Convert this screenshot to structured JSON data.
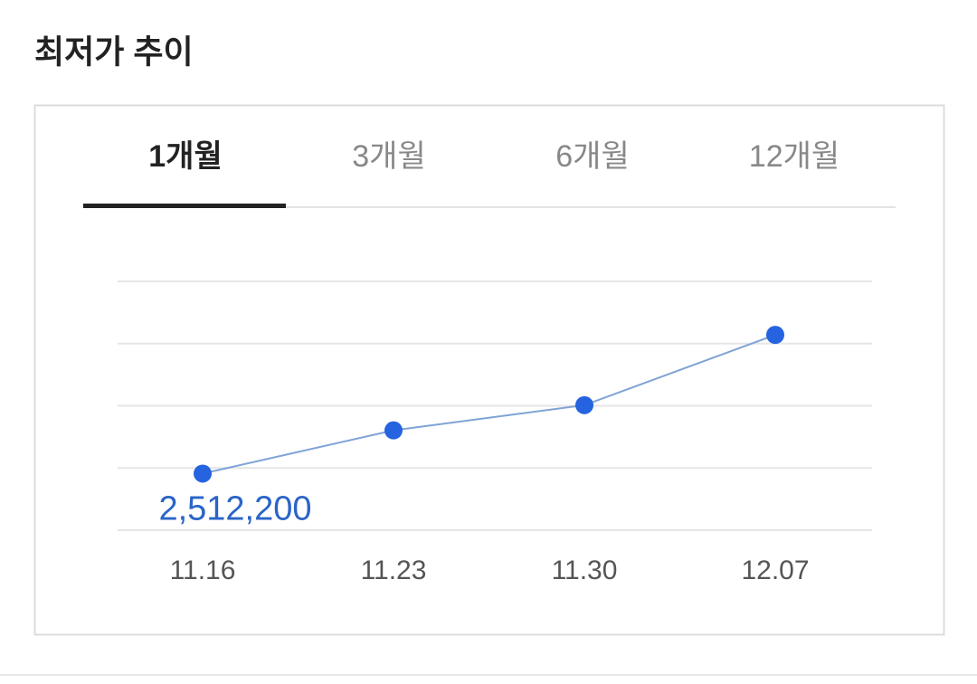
{
  "header": {
    "title": "최저가 추이"
  },
  "tabs": {
    "items": [
      "1개월",
      "3개월",
      "6개월",
      "12개월"
    ],
    "active": 0
  },
  "chart_data": {
    "type": "line",
    "categories": [
      "11.16",
      "11.23",
      "11.30",
      "12.07"
    ],
    "series": [
      {
        "color": "#2563e0",
        "values": [
          2512200,
          2526100,
          2534200,
          2556800
        ],
        "value_labels": [
          "2,512,200",
          null,
          null,
          null
        ]
      }
    ],
    "ylim": [
      2494000,
      2574000
    ],
    "yticks": [
      2494000,
      2514000,
      2534000,
      2554000,
      2574000
    ],
    "grid": true
  }
}
